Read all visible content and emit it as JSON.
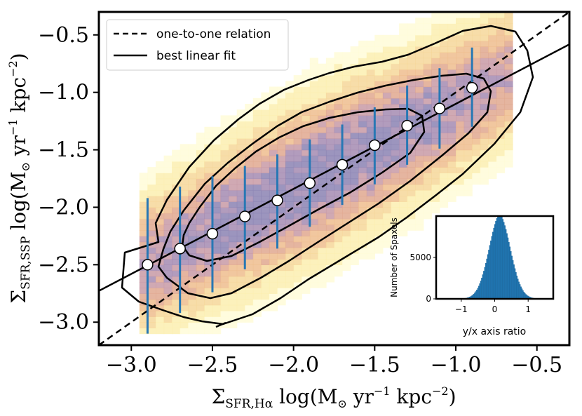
{
  "chart_data": {
    "type": "scatter",
    "title": "",
    "xlabel_main": "Σ",
    "xlabel_sub": "SFR,Hα",
    "xlabel_rest": " log(M",
    "xlabel_sun": "⊙",
    "xlabel_tail": " yr",
    "xlabel_sup1": "−1",
    "xlabel_tail2": " kpc",
    "xlabel_sup2": "−2",
    "xlabel_close": ")",
    "ylabel_main": "Σ",
    "ylabel_sub": "SFR,SSP",
    "ylabel_rest": " log(M",
    "ylabel_sun": "⊙",
    "ylabel_tail": " yr",
    "ylabel_sup1": "−1",
    "ylabel_tail2": " kpc",
    "ylabel_sup2": "−2",
    "ylabel_close": ")",
    "xlim": [
      -3.2,
      -0.3
    ],
    "ylim": [
      -3.2,
      -0.3
    ],
    "xticks": [
      -3.0,
      -2.5,
      -2.0,
      -1.5,
      -1.0,
      -0.5
    ],
    "xtick_labels": [
      "−3.0",
      "−2.5",
      "−2.0",
      "−1.5",
      "−1.0",
      "−0.5"
    ],
    "yticks": [
      -3.0,
      -2.5,
      -2.0,
      -1.5,
      -1.0,
      -0.5
    ],
    "ytick_labels": [
      "−3.0",
      "−2.5",
      "−2.0",
      "−1.5",
      "−1.0",
      "−0.5"
    ],
    "binned_points": {
      "x": [
        -2.9,
        -2.7,
        -2.5,
        -2.3,
        -2.1,
        -1.9,
        -1.7,
        -1.5,
        -1.3,
        -1.1,
        -0.9
      ],
      "y": [
        -2.5,
        -2.36,
        -2.23,
        -2.08,
        -1.94,
        -1.79,
        -1.63,
        -1.46,
        -1.29,
        -1.14,
        -0.96
      ],
      "err_low": [
        -3.1,
        -2.92,
        -2.74,
        -2.54,
        -2.36,
        -2.17,
        -1.98,
        -1.8,
        -1.63,
        -1.49,
        -1.3
      ],
      "err_high": [
        -1.92,
        -1.82,
        -1.73,
        -1.64,
        -1.54,
        -1.41,
        -1.28,
        -1.13,
        -0.94,
        -0.79,
        -0.61
      ],
      "error_color": "#2878b4",
      "marker_color": "#ffffff"
    },
    "series": [
      {
        "name": "one-to-one relation",
        "style": "dashed",
        "slope": 1.0,
        "intercept": 0.0
      },
      {
        "name": "best linear fit",
        "style": "solid",
        "slope": 0.74,
        "intercept": -0.36
      }
    ],
    "legend_position": "top-left",
    "density_colors": [
      "#fffbd8",
      "#fbefb0",
      "#f6d79a",
      "#eebd8e",
      "#e0a88f",
      "#c89aa6",
      "#a48bb2",
      "#8b82b3"
    ],
    "inset": {
      "type": "histogram",
      "xlabel": "y/x axis ratio",
      "ylabel": "Number of Spaxels",
      "xlim": [
        -1.75,
        1.75
      ],
      "ylim": [
        0,
        10000
      ],
      "xticks": [
        -1,
        0,
        1
      ],
      "xtick_labels": [
        "−1",
        "0",
        "1"
      ],
      "yticks": [
        0,
        5000
      ],
      "ytick_labels": [
        "0",
        "5000"
      ],
      "mean": 0.15,
      "sigma": 0.33,
      "peak": 9200,
      "bar_color": "#1f77b4"
    }
  }
}
